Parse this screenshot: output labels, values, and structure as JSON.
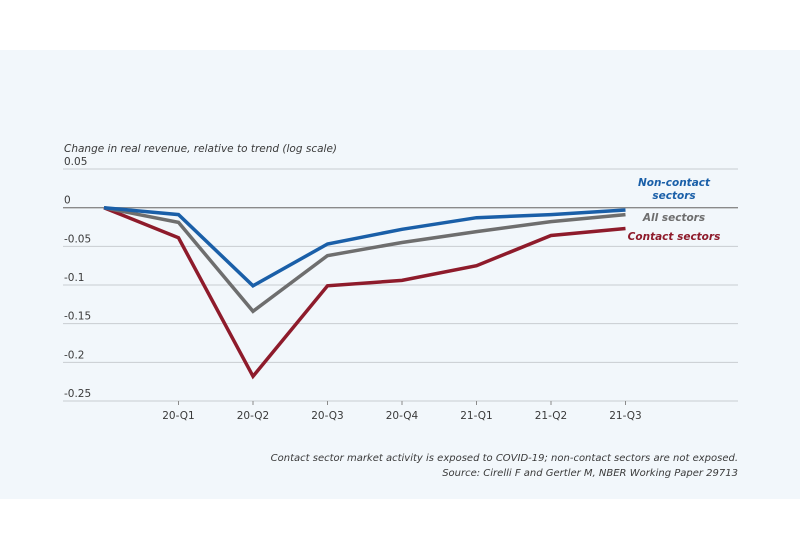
{
  "chart_data": {
    "type": "line",
    "title": "",
    "ylabel": "Change in real revenue, relative to trend (log scale)",
    "xlabel": "",
    "x": [
      "",
      "20-Q1",
      "20-Q2",
      "20-Q3",
      "20-Q4",
      "21-Q1",
      "21-Q2",
      "21-Q3"
    ],
    "x_tick_labels": [
      "20-Q1",
      "20-Q2",
      "20-Q3",
      "20-Q4",
      "21-Q1",
      "21-Q2",
      "21-Q3"
    ],
    "ylim": [
      -0.25,
      0.05
    ],
    "y_ticks": [
      0.05,
      0,
      -0.05,
      -0.1,
      -0.15,
      -0.2,
      -0.25
    ],
    "y_tick_labels": [
      "0.05",
      "0",
      "-0.05",
      "-0.1",
      "-0.15",
      "-0.2",
      "-0.25"
    ],
    "grid": true,
    "legend": "right-inline",
    "series": [
      {
        "name": "Non-contact sectors",
        "label_lines": [
          "Non-contact",
          "sectors"
        ],
        "color": "#1a5fa8",
        "values": [
          0,
          -0.009,
          -0.101,
          -0.047,
          -0.028,
          -0.013,
          -0.009,
          -0.003
        ]
      },
      {
        "name": "All sectors",
        "label_lines": [
          "All sectors"
        ],
        "color": "#6e6e6e",
        "values": [
          0,
          -0.019,
          -0.134,
          -0.062,
          -0.045,
          -0.031,
          -0.018,
          -0.009
        ]
      },
      {
        "name": "Contact sectors",
        "label_lines": [
          "Contact sectors"
        ],
        "color": "#8e1b2b",
        "values": [
          0,
          -0.039,
          -0.218,
          -0.101,
          -0.094,
          -0.075,
          -0.036,
          -0.027
        ]
      }
    ],
    "notes": [
      "Contact sector market activity is exposed to COVID-19; non-contact sectors are not exposed.",
      "Source:  Cirelli F and Gertler M, NBER Working Paper 29713"
    ]
  }
}
